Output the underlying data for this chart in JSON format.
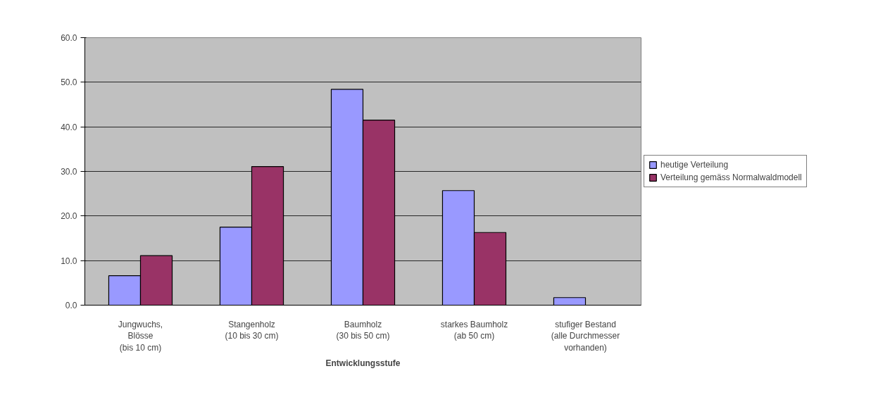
{
  "chart_data": {
    "type": "bar",
    "xlabel": "Entwicklungsstufe",
    "categories": [
      "Jungwuchs,\nBlösse\n(bis 10 cm)",
      "Stangenholz\n(10 bis 30 cm)",
      "Baumholz\n(30 bis 50 cm)",
      "starkes Baumholz\n(ab 50 cm)",
      "stufiger Bestand\n(alle Durchmesser\nvorhanden)"
    ],
    "series": [
      {
        "name": "heutige Verteilung",
        "color": "#9999ff",
        "values": [
          6.6,
          17.5,
          48.4,
          25.7,
          1.7
        ]
      },
      {
        "name": "Verteilung gemäss Normalwaldmodell",
        "color": "#993366",
        "values": [
          11.1,
          31.1,
          41.5,
          16.3,
          null
        ]
      }
    ],
    "ylim": [
      0,
      60
    ],
    "yticks": [
      {
        "value": 0,
        "label": "0.0"
      },
      {
        "value": 10,
        "label": "10.0"
      },
      {
        "value": 20,
        "label": "20.0"
      },
      {
        "value": 30,
        "label": "30.0"
      },
      {
        "value": 40,
        "label": "40.0"
      },
      {
        "value": 50,
        "label": "50.0"
      },
      {
        "value": 60,
        "label": "60.0"
      }
    ],
    "grid": "y",
    "legend": "right"
  }
}
